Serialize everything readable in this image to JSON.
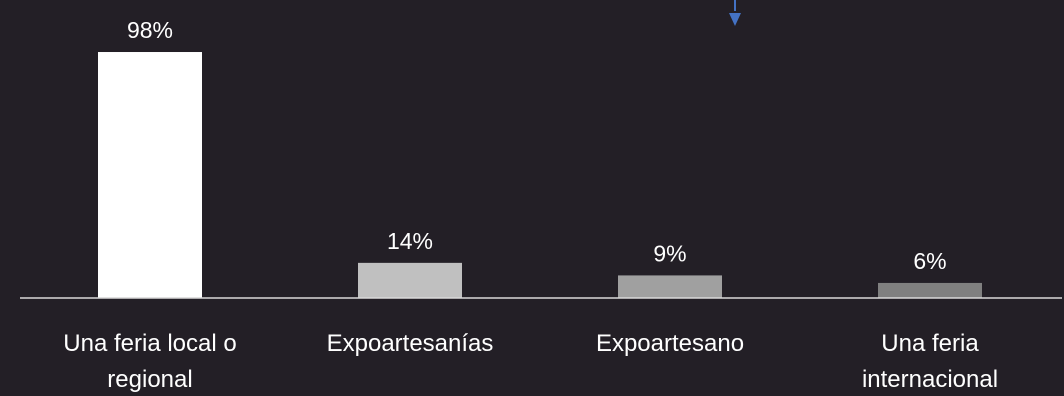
{
  "chart_data": {
    "type": "bar",
    "categories": [
      "Una feria local o regional",
      "Expoartesanías",
      "Expoartesano",
      "Una feria internacional"
    ],
    "values": [
      98,
      14,
      9,
      6
    ],
    "value_labels": [
      "98%",
      "14%",
      "9%",
      "6%"
    ],
    "colors": [
      "#ffffff",
      "#c0c0c0",
      "#a0a0a0",
      "#808080"
    ],
    "ylim": [
      0,
      100
    ]
  }
}
